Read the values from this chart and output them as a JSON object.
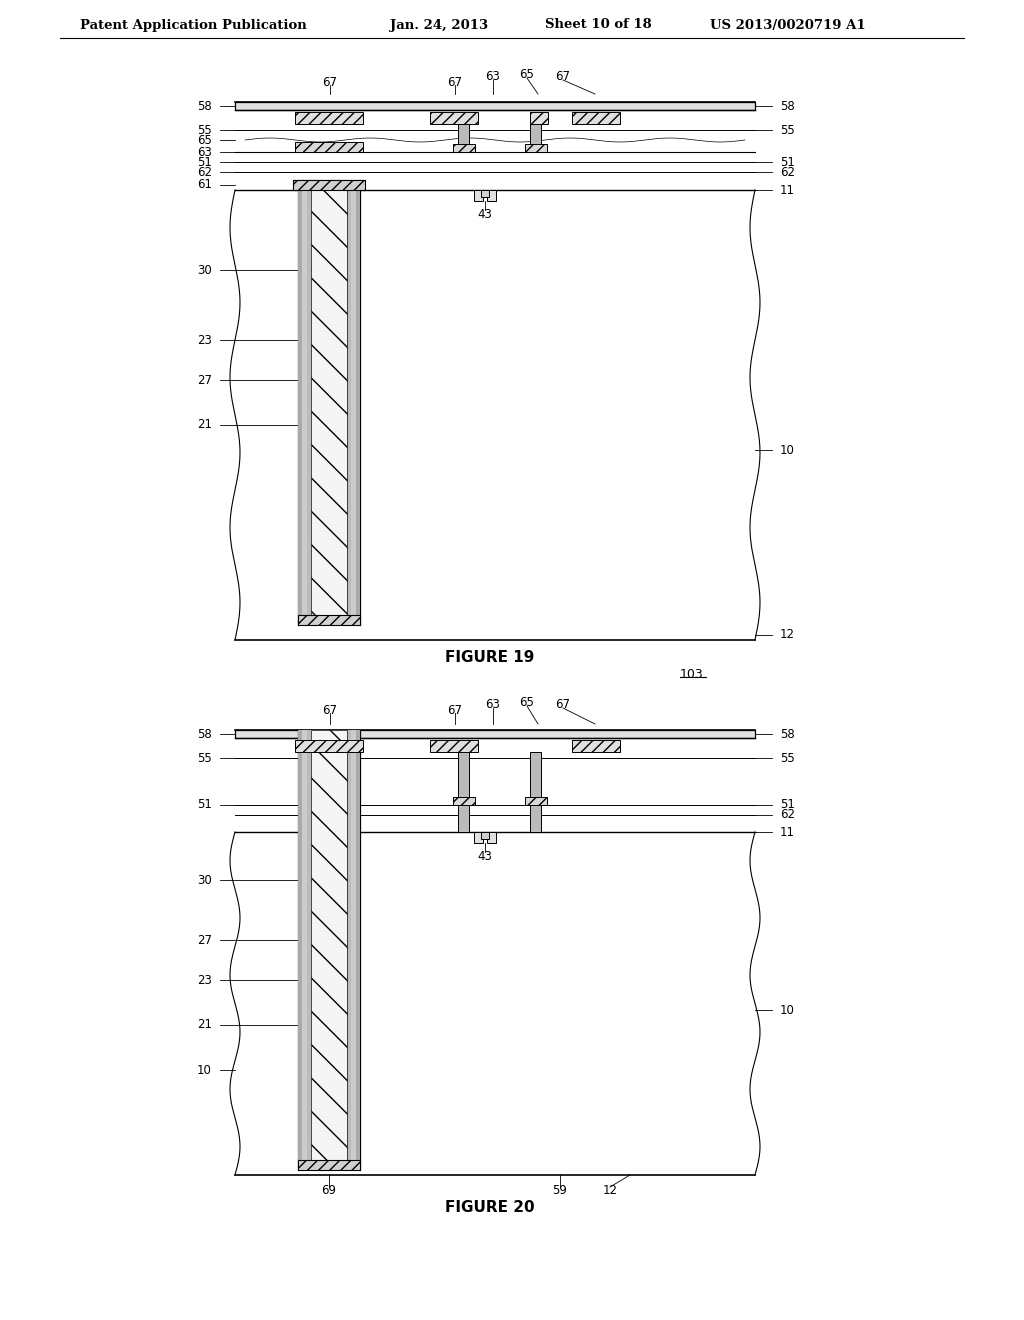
{
  "bg_color": "#ffffff",
  "header_text": "Patent Application Publication",
  "header_date": "Jan. 24, 2013",
  "header_sheet": "Sheet 10 of 18",
  "header_patent": "US 2013/0020719 A1",
  "fig19_title": "FIGURE 19",
  "fig20_title": "FIGURE 20",
  "fig20_label": "103"
}
